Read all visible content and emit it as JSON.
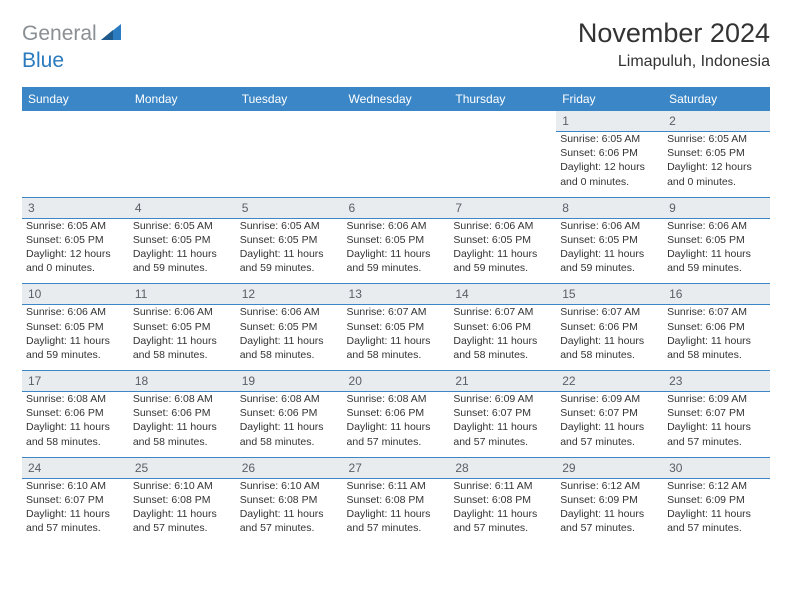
{
  "logo": {
    "text1": "General",
    "text2": "Blue"
  },
  "title": "November 2024",
  "subtitle": "Limapuluh, Indonesia",
  "colors": {
    "header_bg": "#3b86c6",
    "header_text": "#ffffff",
    "daynum_bg": "#e9ecef",
    "daynum_text": "#5a6068",
    "body_text": "#333333",
    "border": "#3b86c6",
    "logo_gray": "#8a8f94",
    "logo_blue": "#2a7bbf",
    "page_bg": "#ffffff"
  },
  "weekdays": [
    "Sunday",
    "Monday",
    "Tuesday",
    "Wednesday",
    "Thursday",
    "Friday",
    "Saturday"
  ],
  "weeks": [
    [
      null,
      null,
      null,
      null,
      null,
      {
        "n": "1",
        "sr": "Sunrise: 6:05 AM",
        "ss": "Sunset: 6:06 PM",
        "d1": "Daylight: 12 hours",
        "d2": "and 0 minutes."
      },
      {
        "n": "2",
        "sr": "Sunrise: 6:05 AM",
        "ss": "Sunset: 6:05 PM",
        "d1": "Daylight: 12 hours",
        "d2": "and 0 minutes."
      }
    ],
    [
      {
        "n": "3",
        "sr": "Sunrise: 6:05 AM",
        "ss": "Sunset: 6:05 PM",
        "d1": "Daylight: 12 hours",
        "d2": "and 0 minutes."
      },
      {
        "n": "4",
        "sr": "Sunrise: 6:05 AM",
        "ss": "Sunset: 6:05 PM",
        "d1": "Daylight: 11 hours",
        "d2": "and 59 minutes."
      },
      {
        "n": "5",
        "sr": "Sunrise: 6:05 AM",
        "ss": "Sunset: 6:05 PM",
        "d1": "Daylight: 11 hours",
        "d2": "and 59 minutes."
      },
      {
        "n": "6",
        "sr": "Sunrise: 6:06 AM",
        "ss": "Sunset: 6:05 PM",
        "d1": "Daylight: 11 hours",
        "d2": "and 59 minutes."
      },
      {
        "n": "7",
        "sr": "Sunrise: 6:06 AM",
        "ss": "Sunset: 6:05 PM",
        "d1": "Daylight: 11 hours",
        "d2": "and 59 minutes."
      },
      {
        "n": "8",
        "sr": "Sunrise: 6:06 AM",
        "ss": "Sunset: 6:05 PM",
        "d1": "Daylight: 11 hours",
        "d2": "and 59 minutes."
      },
      {
        "n": "9",
        "sr": "Sunrise: 6:06 AM",
        "ss": "Sunset: 6:05 PM",
        "d1": "Daylight: 11 hours",
        "d2": "and 59 minutes."
      }
    ],
    [
      {
        "n": "10",
        "sr": "Sunrise: 6:06 AM",
        "ss": "Sunset: 6:05 PM",
        "d1": "Daylight: 11 hours",
        "d2": "and 59 minutes."
      },
      {
        "n": "11",
        "sr": "Sunrise: 6:06 AM",
        "ss": "Sunset: 6:05 PM",
        "d1": "Daylight: 11 hours",
        "d2": "and 58 minutes."
      },
      {
        "n": "12",
        "sr": "Sunrise: 6:06 AM",
        "ss": "Sunset: 6:05 PM",
        "d1": "Daylight: 11 hours",
        "d2": "and 58 minutes."
      },
      {
        "n": "13",
        "sr": "Sunrise: 6:07 AM",
        "ss": "Sunset: 6:05 PM",
        "d1": "Daylight: 11 hours",
        "d2": "and 58 minutes."
      },
      {
        "n": "14",
        "sr": "Sunrise: 6:07 AM",
        "ss": "Sunset: 6:06 PM",
        "d1": "Daylight: 11 hours",
        "d2": "and 58 minutes."
      },
      {
        "n": "15",
        "sr": "Sunrise: 6:07 AM",
        "ss": "Sunset: 6:06 PM",
        "d1": "Daylight: 11 hours",
        "d2": "and 58 minutes."
      },
      {
        "n": "16",
        "sr": "Sunrise: 6:07 AM",
        "ss": "Sunset: 6:06 PM",
        "d1": "Daylight: 11 hours",
        "d2": "and 58 minutes."
      }
    ],
    [
      {
        "n": "17",
        "sr": "Sunrise: 6:08 AM",
        "ss": "Sunset: 6:06 PM",
        "d1": "Daylight: 11 hours",
        "d2": "and 58 minutes."
      },
      {
        "n": "18",
        "sr": "Sunrise: 6:08 AM",
        "ss": "Sunset: 6:06 PM",
        "d1": "Daylight: 11 hours",
        "d2": "and 58 minutes."
      },
      {
        "n": "19",
        "sr": "Sunrise: 6:08 AM",
        "ss": "Sunset: 6:06 PM",
        "d1": "Daylight: 11 hours",
        "d2": "and 58 minutes."
      },
      {
        "n": "20",
        "sr": "Sunrise: 6:08 AM",
        "ss": "Sunset: 6:06 PM",
        "d1": "Daylight: 11 hours",
        "d2": "and 57 minutes."
      },
      {
        "n": "21",
        "sr": "Sunrise: 6:09 AM",
        "ss": "Sunset: 6:07 PM",
        "d1": "Daylight: 11 hours",
        "d2": "and 57 minutes."
      },
      {
        "n": "22",
        "sr": "Sunrise: 6:09 AM",
        "ss": "Sunset: 6:07 PM",
        "d1": "Daylight: 11 hours",
        "d2": "and 57 minutes."
      },
      {
        "n": "23",
        "sr": "Sunrise: 6:09 AM",
        "ss": "Sunset: 6:07 PM",
        "d1": "Daylight: 11 hours",
        "d2": "and 57 minutes."
      }
    ],
    [
      {
        "n": "24",
        "sr": "Sunrise: 6:10 AM",
        "ss": "Sunset: 6:07 PM",
        "d1": "Daylight: 11 hours",
        "d2": "and 57 minutes."
      },
      {
        "n": "25",
        "sr": "Sunrise: 6:10 AM",
        "ss": "Sunset: 6:08 PM",
        "d1": "Daylight: 11 hours",
        "d2": "and 57 minutes."
      },
      {
        "n": "26",
        "sr": "Sunrise: 6:10 AM",
        "ss": "Sunset: 6:08 PM",
        "d1": "Daylight: 11 hours",
        "d2": "and 57 minutes."
      },
      {
        "n": "27",
        "sr": "Sunrise: 6:11 AM",
        "ss": "Sunset: 6:08 PM",
        "d1": "Daylight: 11 hours",
        "d2": "and 57 minutes."
      },
      {
        "n": "28",
        "sr": "Sunrise: 6:11 AM",
        "ss": "Sunset: 6:08 PM",
        "d1": "Daylight: 11 hours",
        "d2": "and 57 minutes."
      },
      {
        "n": "29",
        "sr": "Sunrise: 6:12 AM",
        "ss": "Sunset: 6:09 PM",
        "d1": "Daylight: 11 hours",
        "d2": "and 57 minutes."
      },
      {
        "n": "30",
        "sr": "Sunrise: 6:12 AM",
        "ss": "Sunset: 6:09 PM",
        "d1": "Daylight: 11 hours",
        "d2": "and 57 minutes."
      }
    ]
  ]
}
